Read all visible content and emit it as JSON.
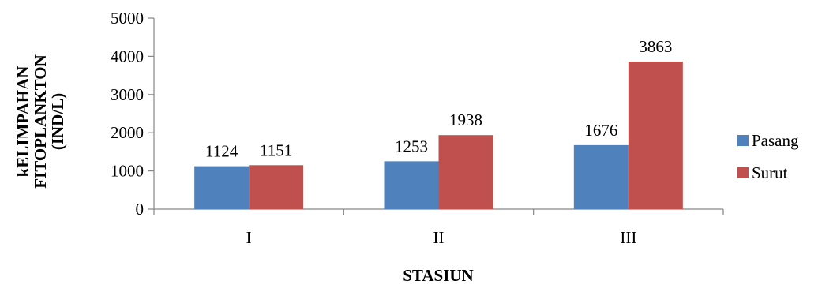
{
  "chart_data": {
    "type": "bar",
    "title": "",
    "xlabel": "STASIUN",
    "ylabel_lines": [
      "kELIMPAHAN",
      "FITOPLANKTON",
      "(IND/L)"
    ],
    "categories": [
      "I",
      "II",
      "III"
    ],
    "series": [
      {
        "name": "Pasang",
        "values": [
          1124,
          1253,
          1676
        ],
        "color": "#4F81BD"
      },
      {
        "name": "Surut",
        "values": [
          1151,
          1938,
          3863
        ],
        "color": "#C0504D"
      }
    ],
    "ylim": [
      0,
      5000
    ],
    "yticks": [
      0,
      1000,
      2000,
      3000,
      4000,
      5000
    ],
    "grid": false,
    "legend_position": "right",
    "data_labels": true
  }
}
